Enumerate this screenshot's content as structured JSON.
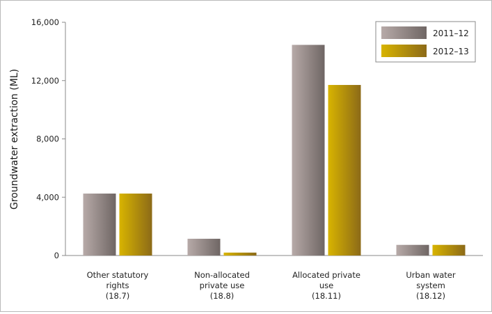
{
  "chart_data": {
    "type": "bar",
    "ylabel": "Groundwater extraction (ML)",
    "ylim": [
      0,
      16000
    ],
    "yticks": [
      0,
      4000,
      8000,
      12000,
      16000
    ],
    "ytick_labels": [
      "0",
      "4,000",
      "8,000",
      "12,000",
      "16,000"
    ],
    "grid": false,
    "legend_position": "top-right",
    "categories": [
      [
        "Other statutory",
        "rights",
        "(18.7)"
      ],
      [
        "Non-allocated",
        "private use",
        "(18.8)"
      ],
      [
        "Allocated private",
        "use",
        "(18.11)"
      ],
      [
        "Urban water",
        "system",
        "(18.12)"
      ]
    ],
    "series": [
      {
        "name": "2011–12",
        "values": [
          4250,
          1150,
          14450,
          730
        ],
        "colors": [
          "#b7aaa8",
          "#6f6664"
        ]
      },
      {
        "name": "2012–13",
        "values": [
          4250,
          200,
          11700,
          730
        ],
        "colors": [
          "#d8b400",
          "#8c6a18"
        ]
      }
    ]
  }
}
